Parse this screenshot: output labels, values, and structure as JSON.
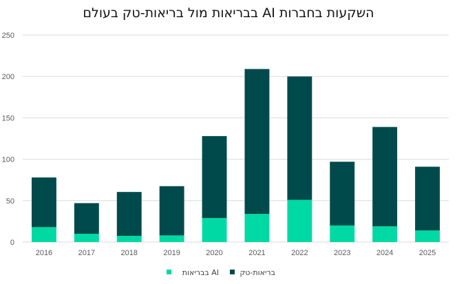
{
  "chart_data": {
    "type": "bar",
    "stacked": true,
    "title": "השקעות בחברות AI בבריאות מול בריאות-טק בעולם",
    "xlabel": "",
    "ylabel": "",
    "ylim": [
      0,
      250
    ],
    "yticks": [
      0,
      50,
      100,
      150,
      200,
      250
    ],
    "grid": true,
    "legend_position": "bottom",
    "categories": [
      "2016",
      "2017",
      "2018",
      "2019",
      "2020",
      "2021",
      "2022",
      "2023",
      "2024",
      "2025"
    ],
    "series": [
      {
        "name": "AI בבריאות",
        "color": "#00D9A3",
        "values": [
          18,
          10,
          7.5,
          8,
          29,
          34,
          51,
          20,
          19,
          14
        ]
      },
      {
        "name": "בריאות-טק",
        "color": "#004A4C",
        "values": [
          60,
          37,
          53,
          59.5,
          99,
          175,
          149,
          77,
          120,
          77
        ]
      }
    ],
    "totals": [
      78,
      47,
      60.5,
      67.5,
      128,
      209,
      200,
      97,
      139,
      91
    ]
  }
}
